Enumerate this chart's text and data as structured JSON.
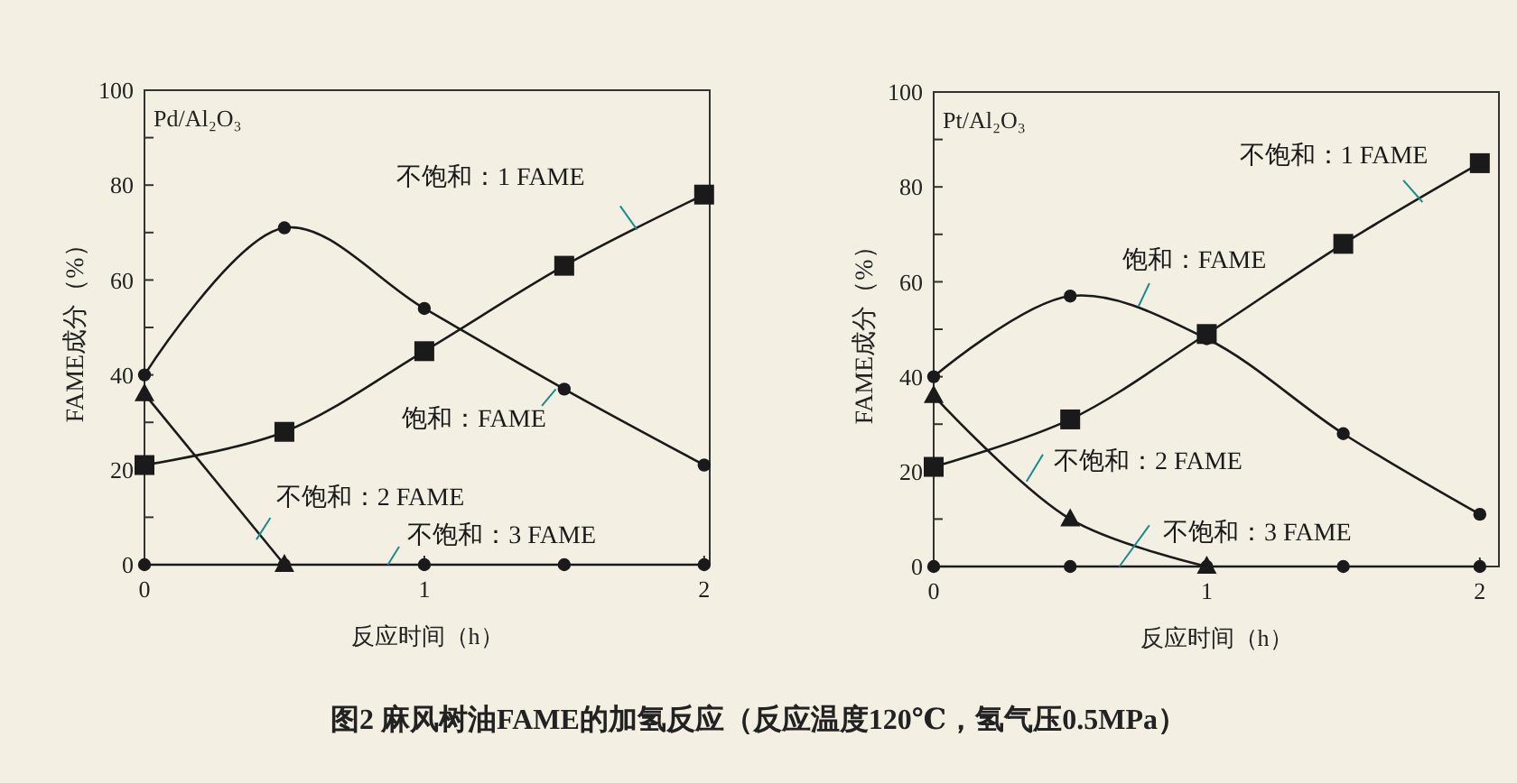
{
  "chart_data": [
    {
      "type": "line",
      "title": "Pd/Al₂O₃",
      "xlabel": "反应时间（h）",
      "ylabel": "FAME成分（%）",
      "x": [
        0,
        0.5,
        1,
        1.5,
        2
      ],
      "xlim": [
        0,
        2.02
      ],
      "xticks": [
        0,
        1,
        2
      ],
      "ylim": [
        0,
        100
      ],
      "yticks": [
        0,
        {
          "value": 10,
          "label": null
        },
        20,
        {
          "value": 30,
          "label": null
        },
        40,
        {
          "value": 50,
          "label": null
        },
        60,
        {
          "value": 70,
          "label": null
        },
        80,
        {
          "value": 90,
          "label": null
        },
        100
      ],
      "grid": false,
      "line_style": "solid",
      "annotations": [
        "图2  麻风树油FAME的加氢反应（反应温度120℃，氢气压0.5MPa）"
      ],
      "series": [
        {
          "name": "不饱和：1 FAME",
          "color": "#1a1a1a",
          "marker": "square",
          "values": [
            21,
            28,
            45,
            63,
            78
          ]
        },
        {
          "name": "饱和：FAME",
          "color": "#1a1a1a",
          "marker": "circle",
          "values": [
            40,
            71,
            54,
            37,
            21
          ]
        },
        {
          "name": "不饱和：2 FAME",
          "color": "#1a1a1a",
          "marker": "triangle",
          "x": [
            0,
            0.5
          ],
          "values": [
            36,
            0
          ]
        },
        {
          "name": "不饱和：3 FAME",
          "color": "#1a1a1a",
          "marker": "circle",
          "values": [
            0,
            0,
            0,
            0,
            0
          ]
        }
      ]
    },
    {
      "type": "line",
      "title": "Pt/Al₂O₃",
      "xlabel": "反应时间（h）",
      "ylabel": "FAME成分（%）",
      "x": [
        0,
        0.5,
        1,
        1.5,
        2
      ],
      "xlim": [
        0,
        2.07
      ],
      "xticks": [
        0,
        1,
        2
      ],
      "ylim": [
        0,
        100
      ],
      "yticks": [
        0,
        {
          "value": 10,
          "label": null
        },
        20,
        {
          "value": 30,
          "label": null
        },
        40,
        {
          "value": 50,
          "label": null
        },
        60,
        {
          "value": 70,
          "label": null
        },
        80,
        {
          "value": 90,
          "label": null
        },
        100
      ],
      "grid": false,
      "line_style": "solid",
      "series": [
        {
          "name": "不饱和：1 FAME",
          "color": "#1a1a1a",
          "marker": "square",
          "values": [
            21,
            31,
            49,
            68,
            85
          ]
        },
        {
          "name": "饱和：FAME",
          "color": "#1a1a1a",
          "marker": "circle",
          "values": [
            40,
            57,
            48,
            28,
            11
          ]
        },
        {
          "name": "不饱和：2 FAME",
          "color": "#1a1a1a",
          "marker": "triangle",
          "x": [
            0,
            0.5,
            1
          ],
          "values": [
            36,
            10,
            0
          ]
        },
        {
          "name": "不饱和：3 FAME",
          "color": "#1a1a1a",
          "marker": "circle",
          "values": [
            0,
            0,
            0,
            0,
            0
          ]
        }
      ]
    }
  ]
}
